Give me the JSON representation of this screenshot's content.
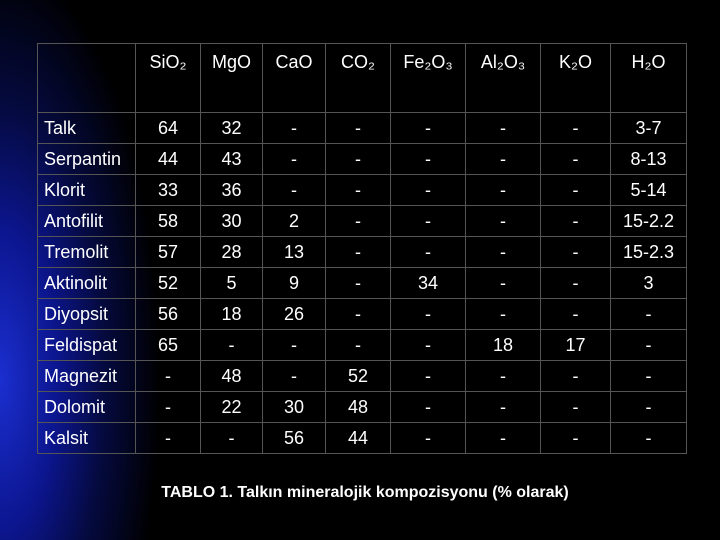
{
  "table": {
    "header": [
      "SiO₂",
      "MgO",
      "CaO",
      "CO₂",
      "Fe₂O₃",
      "Al₂O₃",
      "K₂O",
      "H₂O"
    ],
    "rows": [
      [
        "Talk",
        64,
        32,
        "-",
        "-",
        "-",
        "-",
        "-",
        "3-7"
      ],
      [
        "Serpantin",
        44,
        43,
        "-",
        "-",
        "-",
        "-",
        "-",
        "8-13"
      ],
      [
        "Klorit",
        33,
        36,
        "-",
        "-",
        "-",
        "-",
        "-",
        "5-14"
      ],
      [
        "Antofilit",
        58,
        30,
        2,
        "-",
        "-",
        "-",
        "-",
        "15-2.2"
      ],
      [
        "Tremolit",
        57,
        28,
        13,
        "-",
        "-",
        "-",
        "-",
        "15-2.3"
      ],
      [
        "Aktinolit",
        52,
        5,
        9,
        "-",
        34,
        "-",
        "-",
        3
      ],
      [
        "Diyopsit",
        56,
        18,
        26,
        "-",
        "-",
        "-",
        "-",
        "-"
      ],
      [
        "Feldispat",
        65,
        "-",
        "-",
        "-",
        "-",
        18,
        17,
        "-"
      ],
      [
        "Magnezit",
        "-",
        48,
        "-",
        52,
        "-",
        "-",
        "-",
        "-"
      ],
      [
        "Dolomit",
        "-",
        22,
        30,
        48,
        "-",
        "-",
        "-",
        "-"
      ],
      [
        "Kalsit",
        "-",
        "-",
        56,
        44,
        "-",
        "-",
        "-",
        "-"
      ]
    ]
  },
  "caption": "TABLO 1. Talkın mineralojik kompozisyonu (% olarak)"
}
